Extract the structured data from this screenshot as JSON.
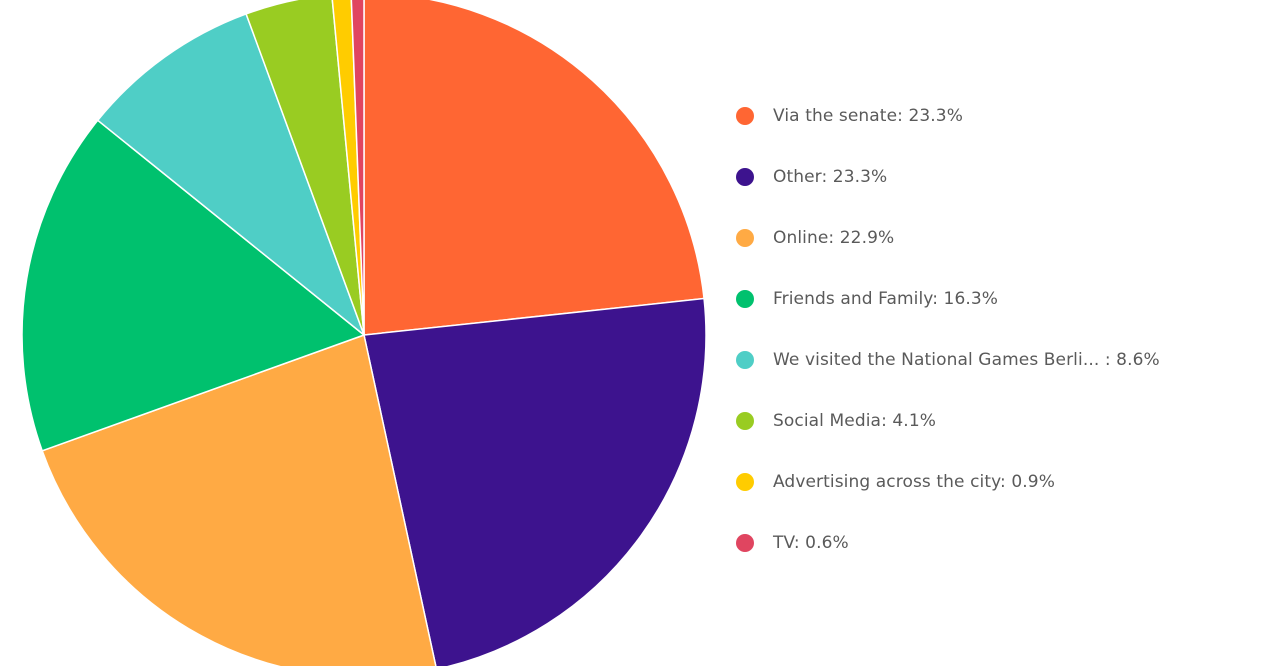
{
  "chart_data": {
    "type": "pie",
    "title": "",
    "legend_position": "right",
    "slices": [
      {
        "label": "Via the senate",
        "value": 23.3,
        "legend_text": "Via the senate: 23.3%",
        "color": "#FF6633"
      },
      {
        "label": "Other",
        "value": 23.3,
        "legend_text": "Other: 23.3%",
        "color": "#3D138E"
      },
      {
        "label": "Online",
        "value": 22.9,
        "legend_text": "Online: 22.9%",
        "color": "#FFAA44"
      },
      {
        "label": "Friends and Family",
        "value": 16.3,
        "legend_text": "Friends and Family: 16.3%",
        "color": "#00C16E"
      },
      {
        "label": "We visited the National Games Berli...",
        "value": 8.6,
        "legend_text": "We visited the National Games Berli... : 8.6%",
        "color": "#4FCEC6"
      },
      {
        "label": "Social Media",
        "value": 4.1,
        "legend_text": "Social Media: 4.1%",
        "color": "#99CC22"
      },
      {
        "label": "Advertising across the city",
        "value": 0.9,
        "legend_text": "Advertising across the city: 0.9%",
        "color": "#FFCC00"
      },
      {
        "label": "TV",
        "value": 0.6,
        "legend_text": "TV: 0.6%",
        "color": "#E04560"
      }
    ]
  }
}
